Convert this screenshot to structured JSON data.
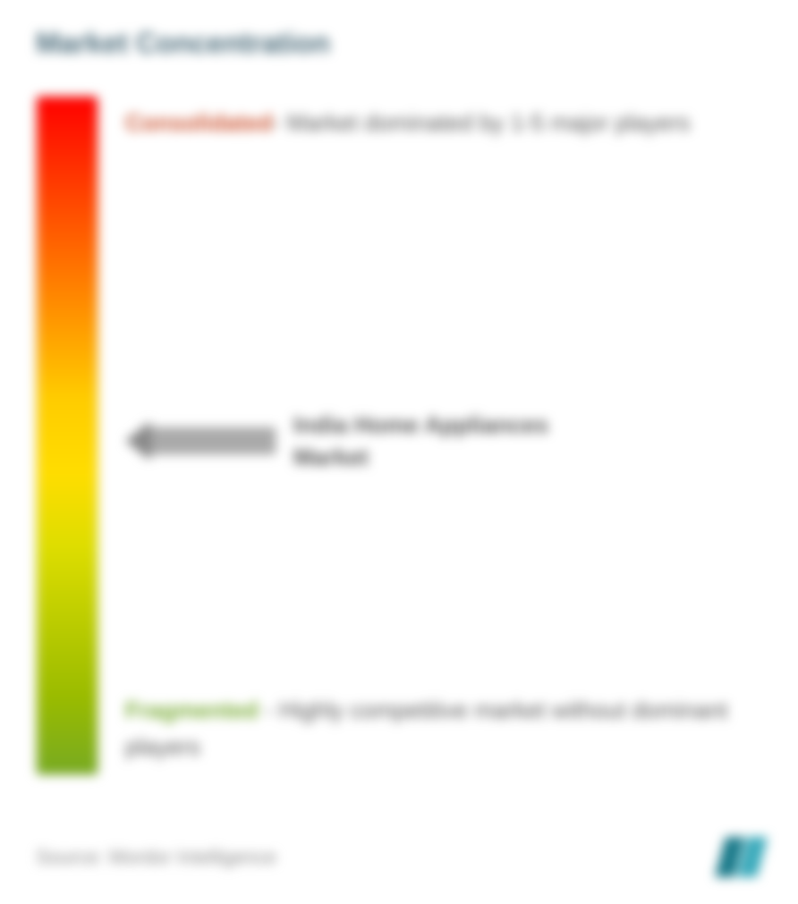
{
  "title": "Market Concentration",
  "gradient": {
    "colors": [
      "#ff0000",
      "#ff3300",
      "#ff6600",
      "#ff9900",
      "#ffcc00",
      "#ffdd00",
      "#dddd00",
      "#bbcc00",
      "#99bb00",
      "#77aa22"
    ],
    "border_color": "#cccccc"
  },
  "top_label": {
    "prefix": "Consolidated",
    "prefix_color": "#cc5533",
    "text": "- Market dominated by 1-5 major players"
  },
  "middle_label": {
    "text": "India Home Appliances Market",
    "arrow_fill": "#aaaaaa",
    "arrow_head_color": "#888888"
  },
  "bottom_label": {
    "prefix": "Fragmented",
    "prefix_color": "#77aa33",
    "text": " - Highly competitive market without dominant players"
  },
  "footer": {
    "source": "Source: Mordor Intelligence",
    "logo_colors": [
      "#1a7a8a",
      "#3aaabb"
    ]
  }
}
